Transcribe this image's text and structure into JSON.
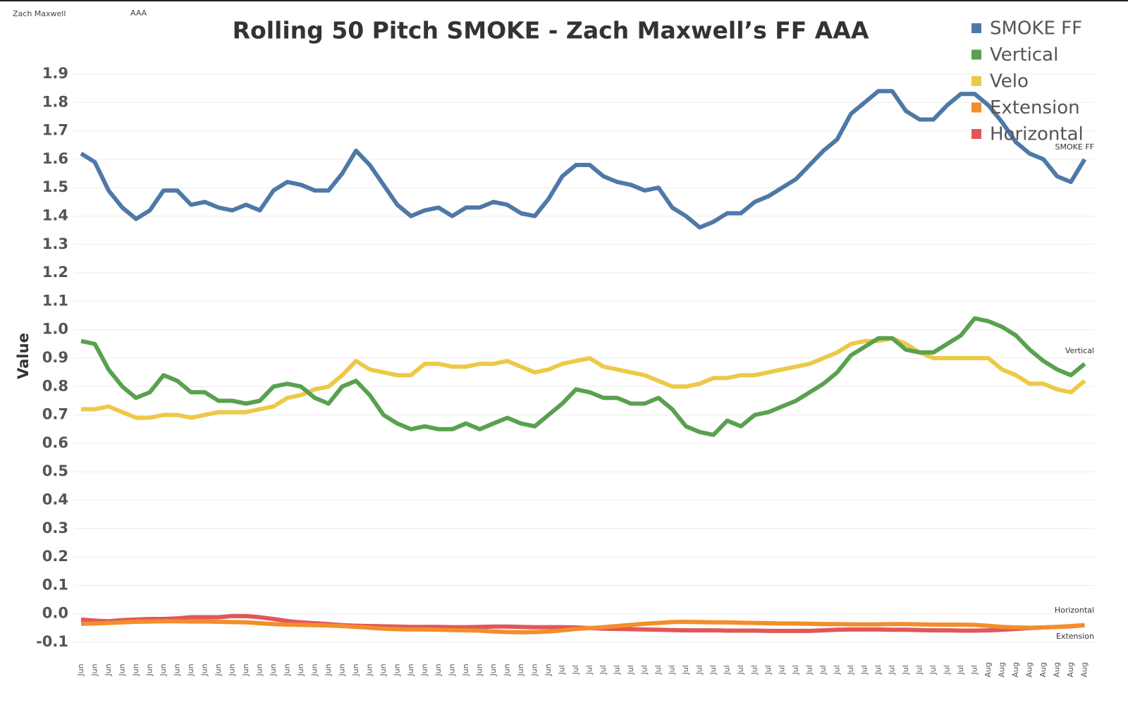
{
  "header": {
    "player": "Zach Maxwell",
    "level": "AAA"
  },
  "chart_data": {
    "type": "line",
    "title": "Rolling 50 Pitch SMOKE - Zach Maxwell’s FF AAA",
    "y_label": "Value",
    "categories": [
      "Jun",
      "Jun",
      "Jun",
      "Jun",
      "Jun",
      "Jun",
      "Jun",
      "Jun",
      "Jun",
      "Jun",
      "Jun",
      "Jun",
      "Jun",
      "Jun",
      "Jun",
      "Jun",
      "Jun",
      "Jun",
      "Jun",
      "Jun",
      "Jun",
      "Jun",
      "Jun",
      "Jun",
      "Jun",
      "Jun",
      "Jun",
      "Jun",
      "Jun",
      "Jun",
      "Jun",
      "Jun",
      "Jun",
      "Jun",
      "Jun",
      "Jul",
      "Jul",
      "Jul",
      "Jul",
      "Jul",
      "Jul",
      "Jul",
      "Jul",
      "Jul",
      "Jul",
      "Jul",
      "Jul",
      "Jul",
      "Jul",
      "Jul",
      "Jul",
      "Jul",
      "Jul",
      "Jul",
      "Jul",
      "Jul",
      "Jul",
      "Jul",
      "Jul",
      "Jul",
      "Jul",
      "Jul",
      "Jul",
      "Jul",
      "Jul",
      "Jul",
      "Aug",
      "Aug",
      "Aug",
      "Aug",
      "Aug",
      "Aug",
      "Aug",
      "Aug"
    ],
    "series": [
      {
        "name": "SMOKE FF",
        "color": "#4e79a7",
        "values": [
          1.62,
          1.59,
          1.49,
          1.43,
          1.39,
          1.42,
          1.49,
          1.49,
          1.44,
          1.45,
          1.43,
          1.42,
          1.44,
          1.42,
          1.49,
          1.52,
          1.51,
          1.49,
          1.49,
          1.55,
          1.63,
          1.58,
          1.51,
          1.44,
          1.4,
          1.42,
          1.43,
          1.4,
          1.43,
          1.43,
          1.45,
          1.44,
          1.41,
          1.4,
          1.46,
          1.54,
          1.58,
          1.58,
          1.54,
          1.52,
          1.51,
          1.49,
          1.5,
          1.43,
          1.4,
          1.36,
          1.38,
          1.41,
          1.41,
          1.45,
          1.47,
          1.5,
          1.53,
          1.58,
          1.63,
          1.67,
          1.76,
          1.8,
          1.84,
          1.84,
          1.77,
          1.74,
          1.74,
          1.79,
          1.83,
          1.83,
          1.79,
          1.73,
          1.66,
          1.62,
          1.6,
          1.54,
          1.52,
          1.6
        ]
      },
      {
        "name": "Vertical",
        "color": "#59a14f",
        "values": [
          0.96,
          0.95,
          0.86,
          0.8,
          0.76,
          0.78,
          0.84,
          0.82,
          0.78,
          0.78,
          0.75,
          0.75,
          0.74,
          0.75,
          0.8,
          0.81,
          0.8,
          0.76,
          0.74,
          0.8,
          0.82,
          0.77,
          0.7,
          0.67,
          0.65,
          0.66,
          0.65,
          0.65,
          0.67,
          0.65,
          0.67,
          0.69,
          0.67,
          0.66,
          0.7,
          0.74,
          0.79,
          0.78,
          0.76,
          0.76,
          0.74,
          0.74,
          0.76,
          0.72,
          0.66,
          0.64,
          0.63,
          0.68,
          0.66,
          0.7,
          0.71,
          0.73,
          0.75,
          0.78,
          0.81,
          0.85,
          0.91,
          0.94,
          0.97,
          0.97,
          0.93,
          0.92,
          0.92,
          0.95,
          0.98,
          1.04,
          1.03,
          1.01,
          0.98,
          0.93,
          0.89,
          0.86,
          0.84,
          0.88
        ]
      },
      {
        "name": "Velo",
        "color": "#edc948",
        "values": [
          0.72,
          0.72,
          0.73,
          0.71,
          0.69,
          0.69,
          0.7,
          0.7,
          0.69,
          0.7,
          0.71,
          0.71,
          0.71,
          0.72,
          0.73,
          0.76,
          0.77,
          0.79,
          0.8,
          0.84,
          0.89,
          0.86,
          0.85,
          0.84,
          0.84,
          0.88,
          0.88,
          0.87,
          0.87,
          0.88,
          0.88,
          0.89,
          0.87,
          0.85,
          0.86,
          0.88,
          0.89,
          0.9,
          0.87,
          0.86,
          0.85,
          0.84,
          0.82,
          0.8,
          0.8,
          0.81,
          0.83,
          0.83,
          0.84,
          0.84,
          0.85,
          0.86,
          0.87,
          0.88,
          0.9,
          0.92,
          0.95,
          0.96,
          0.96,
          0.97,
          0.95,
          0.92,
          0.9,
          0.9,
          0.9,
          0.9,
          0.9,
          0.86,
          0.84,
          0.81,
          0.81,
          0.79,
          0.78,
          0.82
        ]
      },
      {
        "name": "Extension",
        "color": "#f28e2b",
        "values": [
          -0.035,
          -0.034,
          -0.032,
          -0.03,
          -0.028,
          -0.027,
          -0.026,
          -0.026,
          -0.027,
          -0.027,
          -0.028,
          -0.029,
          -0.03,
          -0.033,
          -0.036,
          -0.038,
          -0.039,
          -0.04,
          -0.041,
          -0.043,
          -0.046,
          -0.049,
          -0.052,
          -0.054,
          -0.055,
          -0.055,
          -0.056,
          -0.057,
          -0.058,
          -0.059,
          -0.062,
          -0.064,
          -0.065,
          -0.064,
          -0.062,
          -0.058,
          -0.053,
          -0.05,
          -0.047,
          -0.043,
          -0.039,
          -0.035,
          -0.032,
          -0.029,
          -0.028,
          -0.029,
          -0.03,
          -0.03,
          -0.031,
          -0.032,
          -0.033,
          -0.034,
          -0.034,
          -0.035,
          -0.036,
          -0.036,
          -0.037,
          -0.037,
          -0.037,
          -0.036,
          -0.036,
          -0.037,
          -0.038,
          -0.038,
          -0.038,
          -0.039,
          -0.042,
          -0.046,
          -0.048,
          -0.049,
          -0.048,
          -0.046,
          -0.043,
          -0.04
        ]
      },
      {
        "name": "Horizontal",
        "color": "#e15759",
        "values": [
          -0.02,
          -0.024,
          -0.026,
          -0.022,
          -0.02,
          -0.018,
          -0.018,
          -0.016,
          -0.012,
          -0.012,
          -0.012,
          -0.008,
          -0.008,
          -0.012,
          -0.018,
          -0.025,
          -0.03,
          -0.033,
          -0.036,
          -0.04,
          -0.042,
          -0.043,
          -0.044,
          -0.045,
          -0.046,
          -0.046,
          -0.046,
          -0.047,
          -0.047,
          -0.046,
          -0.045,
          -0.045,
          -0.046,
          -0.047,
          -0.047,
          -0.047,
          -0.048,
          -0.05,
          -0.052,
          -0.053,
          -0.054,
          -0.055,
          -0.056,
          -0.057,
          -0.058,
          -0.058,
          -0.058,
          -0.059,
          -0.059,
          -0.059,
          -0.06,
          -0.06,
          -0.06,
          -0.06,
          -0.058,
          -0.056,
          -0.055,
          -0.055,
          -0.055,
          -0.056,
          -0.056,
          -0.057,
          -0.058,
          -0.058,
          -0.059,
          -0.059,
          -0.058,
          -0.056,
          -0.053,
          -0.05,
          -0.048,
          -0.046,
          -0.044,
          -0.04
        ]
      }
    ],
    "ylim": [
      -0.1,
      1.9
    ],
    "yticks": [
      -0.1,
      {
        "value": 0,
        "label": "0.0"
      },
      0.1,
      0.2,
      0.3,
      0.4,
      0.5,
      0.6,
      0.7,
      0.8,
      0.9,
      {
        "value": 1,
        "label": "1.0"
      },
      1.1,
      1.2,
      1.3,
      1.4,
      1.5,
      1.6,
      1.7,
      1.8,
      1.9
    ],
    "grid": true,
    "legend": "top-right"
  }
}
